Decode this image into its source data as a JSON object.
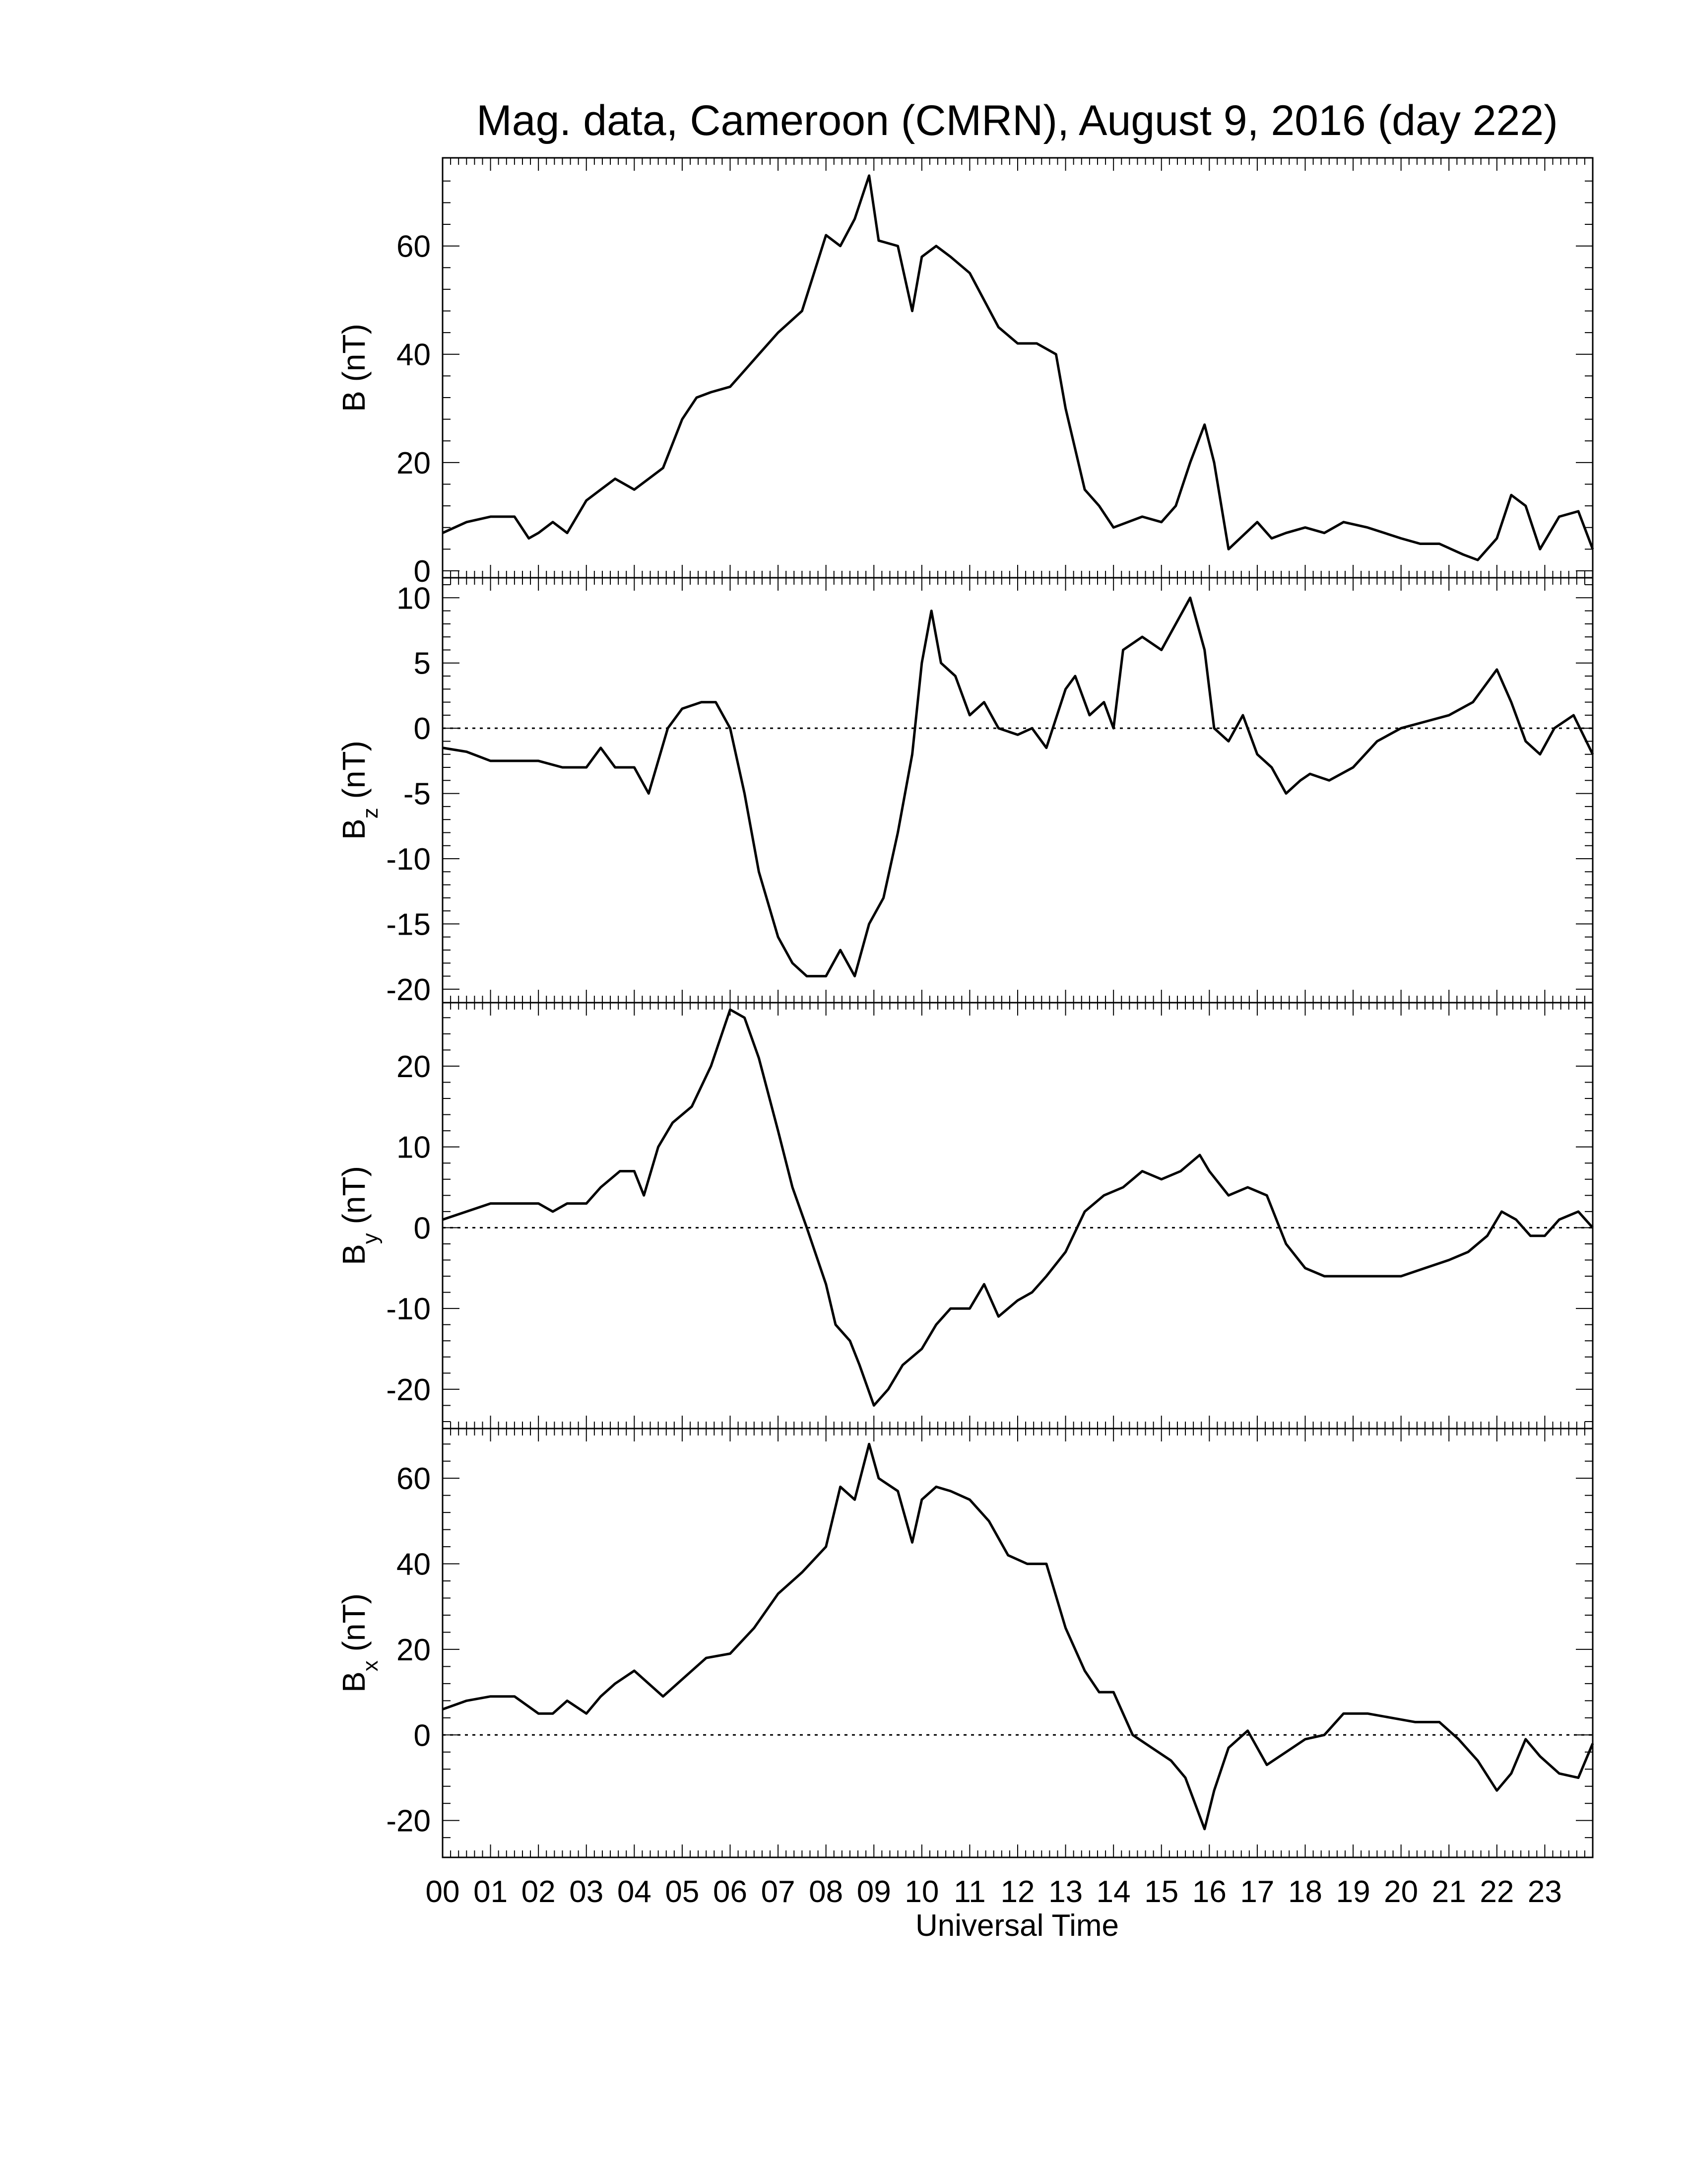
{
  "title": "Mag. data, Cameroon (CMRN), August 9, 2016 (day 222)",
  "xlabel": "Universal Time",
  "xticks": [
    "00",
    "01",
    "02",
    "03",
    "04",
    "05",
    "06",
    "07",
    "08",
    "09",
    "10",
    "11",
    "12",
    "13",
    "14",
    "15",
    "16",
    "17",
    "18",
    "19",
    "20",
    "21",
    "22",
    "23"
  ],
  "chart_data": [
    {
      "type": "line",
      "ylabel": "B (nT)",
      "ylabel_main": "B",
      "ylabel_sub": "",
      "ylabel_unit": "(nT)",
      "xlim": [
        0,
        24
      ],
      "ylim": [
        0,
        75
      ],
      "yticks": [
        0,
        20,
        40,
        60
      ],
      "zero_line": false,
      "x": [
        0,
        0.5,
        1,
        1.5,
        1.8,
        2,
        2.3,
        2.6,
        3,
        3.3,
        3.6,
        4,
        4.3,
        4.6,
        5,
        5.3,
        5.6,
        6,
        6.3,
        6.6,
        7,
        7.5,
        8,
        8.3,
        8.6,
        8.9,
        9.1,
        9.5,
        9.8,
        10,
        10.3,
        10.6,
        11,
        11.3,
        11.6,
        12,
        12.4,
        12.8,
        13,
        13.4,
        13.7,
        14,
        14.3,
        14.6,
        15,
        15.3,
        15.6,
        15.9,
        16.1,
        16.4,
        17,
        17.3,
        17.6,
        18,
        18.4,
        18.8,
        19.3,
        20,
        20.4,
        20.8,
        21.3,
        21.6,
        22,
        22.3,
        22.6,
        22.9,
        23.3,
        23.7,
        24
      ],
      "values": [
        7,
        9,
        10,
        10,
        6,
        7,
        9,
        7,
        13,
        15,
        17,
        15,
        17,
        19,
        28,
        32,
        33,
        34,
        37,
        40,
        44,
        48,
        62,
        60,
        65,
        73,
        61,
        60,
        48,
        58,
        60,
        58,
        55,
        50,
        45,
        42,
        42,
        40,
        30,
        15,
        12,
        8,
        9,
        10,
        9,
        12,
        20,
        27,
        20,
        4,
        9,
        6,
        7,
        8,
        7,
        9,
        8,
        6,
        5,
        5,
        3,
        2,
        6,
        14,
        12,
        4,
        10,
        11,
        4
      ]
    },
    {
      "type": "line",
      "ylabel": "Bz (nT)",
      "ylabel_main": "B",
      "ylabel_sub": "z",
      "ylabel_unit": "(nT)",
      "xlim": [
        0,
        24
      ],
      "ylim": [
        -20.5,
        11
      ],
      "yticks": [
        -20,
        -15,
        -10,
        -5,
        0,
        5,
        10
      ],
      "zero_line": true,
      "x": [
        0,
        0.5,
        1,
        1.5,
        2,
        2.5,
        3,
        3.3,
        3.6,
        4,
        4.3,
        4.7,
        5,
        5.4,
        5.7,
        6,
        6.3,
        6.6,
        7,
        7.3,
        7.6,
        8,
        8.3,
        8.6,
        8.9,
        9.2,
        9.5,
        9.8,
        10,
        10.2,
        10.4,
        10.7,
        11,
        11.3,
        11.6,
        12,
        12.3,
        12.6,
        13,
        13.2,
        13.5,
        13.8,
        14,
        14.2,
        14.6,
        15,
        15.3,
        15.6,
        15.9,
        16.1,
        16.4,
        16.7,
        17,
        17.3,
        17.6,
        17.9,
        18.1,
        18.5,
        19,
        19.5,
        20,
        20.5,
        21,
        21.5,
        22,
        22.3,
        22.6,
        22.9,
        23.2,
        23.6,
        24
      ],
      "values": [
        -1.5,
        -1.8,
        -2.5,
        -2.5,
        -2.5,
        -3,
        -3,
        -1.5,
        -3,
        -3,
        -5,
        0,
        1.5,
        2,
        2,
        0,
        -5,
        -11,
        -16,
        -18,
        -19,
        -19,
        -17,
        -19,
        -15,
        -13,
        -8,
        -2,
        5,
        9,
        5,
        4,
        1,
        2,
        0,
        -0.5,
        0,
        -1.5,
        3,
        4,
        1,
        2,
        0,
        6,
        7,
        6,
        8,
        10,
        6,
        0,
        -1,
        1,
        -2,
        -3,
        -5,
        -4,
        -3.5,
        -4,
        -3,
        -1,
        0,
        0.5,
        1,
        2,
        4.5,
        2,
        -1,
        -2,
        0,
        1,
        -2
      ]
    },
    {
      "type": "line",
      "ylabel": "By (nT)",
      "ylabel_main": "B",
      "ylabel_sub": "y",
      "ylabel_unit": "(nT)",
      "xlim": [
        0,
        24
      ],
      "ylim": [
        -24,
        27
      ],
      "yticks": [
        -20,
        -10,
        0,
        10,
        20
      ],
      "zero_line": true,
      "x": [
        0,
        0.5,
        1,
        1.5,
        2,
        2.3,
        2.6,
        3,
        3.3,
        3.7,
        4,
        4.2,
        4.5,
        4.8,
        5.2,
        5.6,
        6,
        6.3,
        6.6,
        7,
        7.3,
        7.6,
        8,
        8.2,
        8.5,
        8.7,
        9,
        9.3,
        9.6,
        10,
        10.3,
        10.6,
        11,
        11.3,
        11.6,
        12,
        12.3,
        12.6,
        13,
        13.4,
        13.8,
        14.2,
        14.6,
        15,
        15.4,
        15.8,
        16,
        16.4,
        16.8,
        17.2,
        17.6,
        18,
        18.4,
        19,
        19.5,
        20,
        20.5,
        21,
        21.4,
        21.8,
        22.1,
        22.4,
        22.7,
        23,
        23.3,
        23.7,
        24
      ],
      "values": [
        1,
        2,
        3,
        3,
        3,
        2,
        3,
        3,
        5,
        7,
        7,
        4,
        10,
        13,
        15,
        20,
        27,
        26,
        21,
        12,
        5,
        0,
        -7,
        -12,
        -14,
        -17,
        -22,
        -20,
        -17,
        -15,
        -12,
        -10,
        -10,
        -7,
        -11,
        -9,
        -8,
        -6,
        -3,
        2,
        4,
        5,
        7,
        6,
        7,
        9,
        7,
        4,
        5,
        4,
        -2,
        -5,
        -6,
        -6,
        -6,
        -6,
        -5,
        -4,
        -3,
        -1,
        2,
        1,
        -1,
        -1,
        1,
        2,
        0
      ]
    },
    {
      "type": "line",
      "ylabel": "Bx (nT)",
      "ylabel_main": "B",
      "ylabel_sub": "x",
      "ylabel_unit": "(nT)",
      "xlim": [
        0,
        24
      ],
      "ylim": [
        -27,
        70
      ],
      "yticks": [
        -20,
        0,
        20,
        40,
        60
      ],
      "zero_line": true,
      "x": [
        0,
        0.5,
        1,
        1.5,
        2,
        2.3,
        2.6,
        3,
        3.3,
        3.6,
        4,
        4.3,
        4.6,
        5,
        5.5,
        6,
        6.5,
        7,
        7.5,
        8,
        8.3,
        8.6,
        8.9,
        9.1,
        9.5,
        9.8,
        10,
        10.3,
        10.6,
        11,
        11.4,
        11.8,
        12.2,
        12.6,
        13,
        13.4,
        13.7,
        14,
        14.4,
        14.8,
        15.2,
        15.5,
        15.9,
        16.1,
        16.4,
        16.8,
        17.2,
        17.6,
        18,
        18.4,
        18.8,
        19.3,
        19.8,
        20.3,
        20.8,
        21.2,
        21.6,
        22,
        22.3,
        22.6,
        22.9,
        23.3,
        23.7,
        24
      ],
      "values": [
        6,
        8,
        9,
        9,
        5,
        5,
        8,
        5,
        9,
        12,
        15,
        12,
        9,
        13,
        18,
        19,
        25,
        33,
        38,
        44,
        58,
        55,
        68,
        60,
        57,
        45,
        55,
        58,
        57,
        55,
        50,
        42,
        40,
        40,
        25,
        15,
        10,
        10,
        0,
        -3,
        -6,
        -10,
        -22,
        -13,
        -3,
        1,
        -7,
        -4,
        -1,
        0,
        5,
        5,
        4,
        3,
        3,
        -1,
        -6,
        -13,
        -9,
        -1,
        -5,
        -9,
        -10,
        -2
      ]
    }
  ]
}
